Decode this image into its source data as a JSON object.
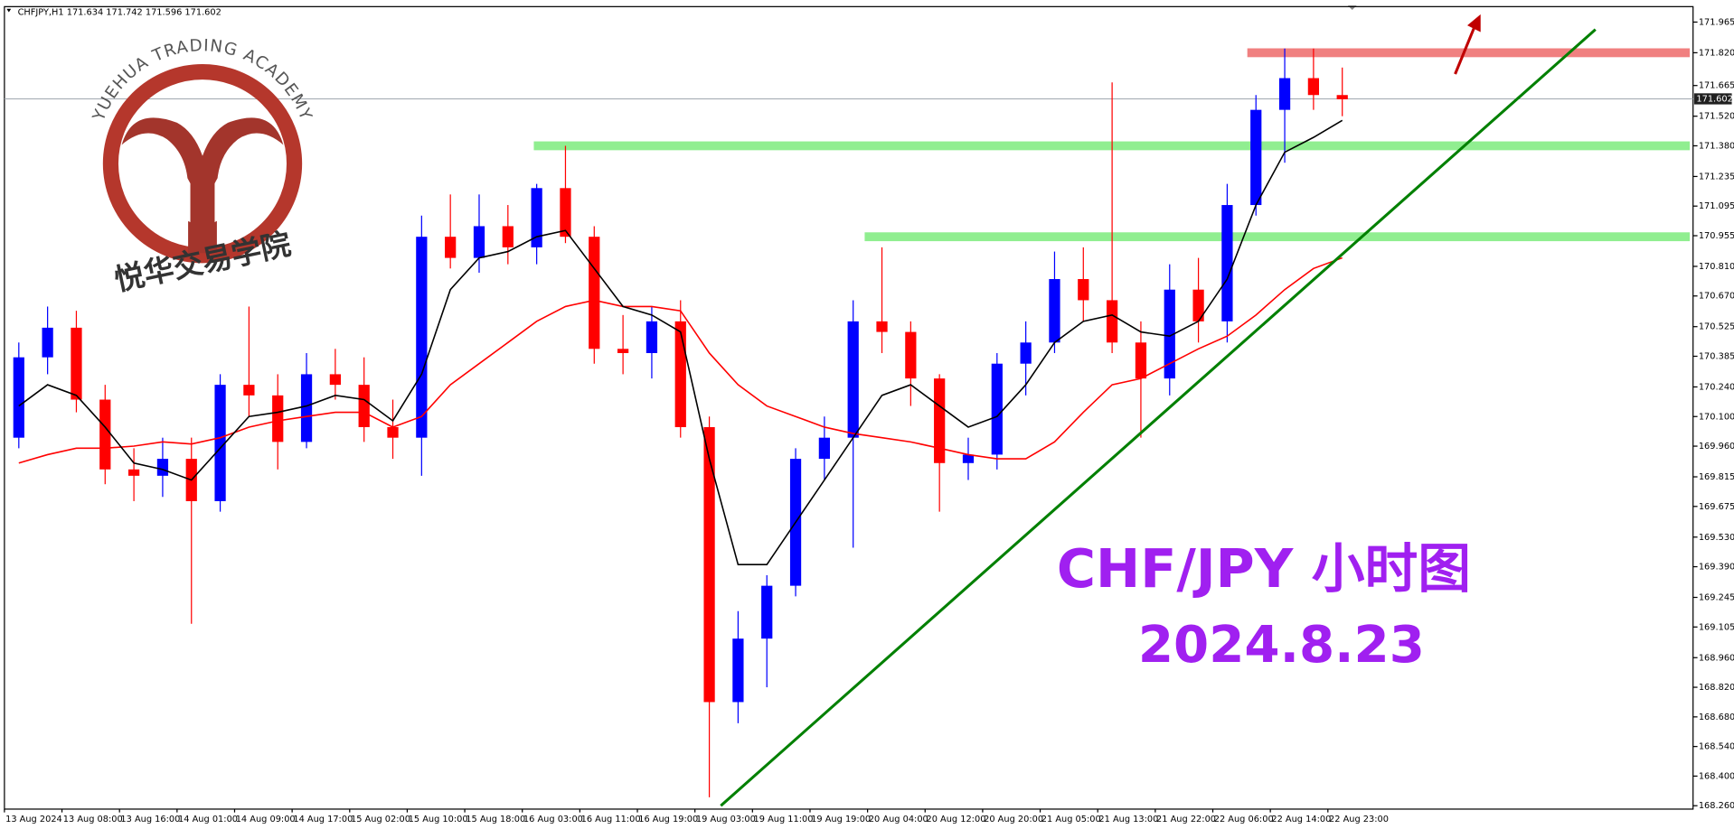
{
  "chart_data": {
    "type": "candlestick",
    "title": "CHFJPY,H1  171.634 171.742 171.596 171.602",
    "logo_text": "YUEHUA TRADING ACADEMY",
    "logo_cn": "悦华交易学院",
    "annotation": "CHF/JPY  小时图",
    "date_text": "2024.8.23",
    "up_color": "#0000ff",
    "down_color": "#ff0000",
    "open": [
      170.0,
      170.38,
      170.52,
      170.18,
      169.85,
      169.82,
      169.9,
      169.7,
      170.25,
      170.2,
      169.98,
      170.3,
      170.25,
      170.05,
      170.0,
      170.95,
      170.85,
      171.0,
      170.9,
      171.18,
      170.95,
      170.42,
      170.4,
      170.55,
      170.05,
      168.75,
      169.05,
      169.3,
      169.9,
      170.0,
      170.55,
      170.5,
      170.28,
      169.88,
      169.92,
      170.35,
      170.45,
      170.75,
      170.65,
      170.45,
      170.28,
      170.7,
      170.55,
      171.1,
      171.55,
      171.7,
      171.62
    ],
    "high": [
      170.45,
      170.62,
      170.6,
      170.25,
      169.95,
      170.0,
      170.0,
      170.3,
      170.62,
      170.3,
      170.4,
      170.42,
      170.38,
      170.18,
      171.05,
      171.15,
      171.15,
      171.1,
      171.2,
      171.38,
      171.0,
      170.58,
      170.62,
      170.65,
      170.1,
      169.18,
      169.35,
      169.95,
      170.1,
      170.65,
      170.9,
      170.55,
      170.3,
      170.0,
      170.4,
      170.55,
      170.88,
      170.9,
      171.68,
      170.55,
      170.82,
      170.85,
      171.2,
      171.62,
      171.84,
      171.84,
      171.75
    ],
    "low": [
      169.95,
      170.3,
      170.12,
      169.78,
      169.7,
      169.72,
      169.12,
      169.65,
      170.1,
      169.85,
      169.95,
      170.18,
      169.98,
      169.9,
      169.82,
      170.8,
      170.78,
      170.82,
      170.82,
      170.92,
      170.35,
      170.3,
      170.28,
      170.0,
      168.3,
      168.65,
      168.82,
      169.25,
      169.8,
      169.48,
      170.4,
      170.15,
      169.65,
      169.8,
      169.85,
      170.2,
      170.4,
      170.55,
      170.4,
      170.0,
      170.2,
      170.45,
      170.45,
      171.05,
      171.3,
      171.55,
      171.52
    ],
    "close": [
      170.38,
      170.52,
      170.18,
      169.85,
      169.82,
      169.9,
      169.7,
      170.25,
      170.2,
      169.98,
      170.3,
      170.25,
      170.05,
      170.0,
      170.95,
      170.85,
      171.0,
      170.9,
      171.18,
      170.95,
      170.42,
      170.4,
      170.55,
      170.05,
      168.75,
      169.05,
      169.3,
      169.9,
      170.0,
      170.55,
      170.5,
      170.28,
      169.88,
      169.92,
      170.35,
      170.45,
      170.75,
      170.65,
      170.45,
      170.28,
      170.7,
      170.55,
      171.1,
      171.55,
      171.7,
      171.62,
      171.6
    ],
    "ma_fast": {
      "color": "#000000",
      "values": [
        170.15,
        170.25,
        170.2,
        170.05,
        169.88,
        169.85,
        169.8,
        169.95,
        170.1,
        170.12,
        170.15,
        170.2,
        170.18,
        170.08,
        170.3,
        170.7,
        170.85,
        170.88,
        170.95,
        170.98,
        170.8,
        170.62,
        170.58,
        170.5,
        169.9,
        169.4,
        169.4,
        169.6,
        169.8,
        170.0,
        170.2,
        170.25,
        170.15,
        170.05,
        170.1,
        170.25,
        170.45,
        170.55,
        170.58,
        170.5,
        170.48,
        170.55,
        170.75,
        171.1,
        171.35,
        171.42,
        171.5
      ]
    },
    "ma_slow": {
      "color": "#ff0000",
      "values": [
        169.88,
        169.92,
        169.95,
        169.95,
        169.96,
        169.98,
        169.97,
        170.0,
        170.05,
        170.08,
        170.1,
        170.12,
        170.12,
        170.05,
        170.1,
        170.25,
        170.35,
        170.45,
        170.55,
        170.62,
        170.65,
        170.62,
        170.62,
        170.6,
        170.4,
        170.25,
        170.15,
        170.1,
        170.05,
        170.02,
        170.0,
        169.98,
        169.95,
        169.92,
        169.9,
        169.9,
        169.98,
        170.12,
        170.25,
        170.28,
        170.35,
        170.42,
        170.48,
        170.58,
        170.7,
        170.8,
        170.85
      ]
    },
    "zones": [
      {
        "price": 171.82,
        "start": 43.2,
        "color": "#f08080"
      },
      {
        "price": 171.38,
        "start": 18.4,
        "color": "#90ee90"
      },
      {
        "price": 170.95,
        "start": 29.9,
        "color": "#90ee90"
      }
    ],
    "trendline": {
      "color": "#008000",
      "x": [
        24.9,
        55.3
      ],
      "y": [
        168.26,
        171.93
      ]
    },
    "current_price": 171.602,
    "ylim": [
      168.244,
      172.038
    ],
    "yticks": [
      171.965,
      {
        "value": 171.82,
        "label": "171.820"
      },
      171.665,
      {
        "value": 171.52,
        "label": "171.520"
      },
      {
        "value": 171.38,
        "label": "171.380"
      },
      171.235,
      171.095,
      170.955,
      {
        "value": 170.81,
        "label": "170.810"
      },
      {
        "value": 170.67,
        "label": "170.670"
      },
      170.525,
      170.385,
      {
        "value": 170.24,
        "label": "170.240"
      },
      {
        "value": 170.1,
        "label": "170.100"
      },
      {
        "value": 169.96,
        "label": "169.960"
      },
      169.815,
      169.675,
      {
        "value": 169.53,
        "label": "169.530"
      },
      {
        "value": 169.39,
        "label": "169.390"
      },
      169.245,
      169.105,
      {
        "value": 168.96,
        "label": "168.960"
      },
      {
        "value": 168.82,
        "label": "168.820"
      },
      {
        "value": 168.68,
        "label": "168.680"
      },
      {
        "value": 168.54,
        "label": "168.540"
      },
      {
        "value": 168.4,
        "label": "168.400"
      },
      {
        "value": 168.26,
        "label": "168.260"
      }
    ],
    "xticks": [
      {
        "value": 0,
        "label": "13 Aug 2024"
      },
      {
        "value": 2,
        "label": "13 Aug 08:00"
      },
      {
        "value": 4,
        "label": "13 Aug 16:00"
      },
      {
        "value": 6,
        "label": "14 Aug 01:00"
      },
      {
        "value": 8,
        "label": "14 Aug 09:00"
      },
      {
        "value": 10,
        "label": "14 Aug 17:00"
      },
      {
        "value": 12,
        "label": "15 Aug 02:00"
      },
      {
        "value": 14,
        "label": "15 Aug 10:00"
      },
      {
        "value": 16,
        "label": "15 Aug 18:00"
      },
      {
        "value": 18,
        "label": "16 Aug 03:00"
      },
      {
        "value": 20,
        "label": "16 Aug 11:00"
      },
      {
        "value": 22,
        "label": "16 Aug 19:00"
      },
      {
        "value": 24,
        "label": "19 Aug 03:00"
      },
      {
        "value": 26,
        "label": "19 Aug 11:00"
      },
      {
        "value": 28,
        "label": "19 Aug 19:00"
      },
      {
        "value": 30,
        "label": "20 Aug 04:00"
      },
      {
        "value": 32,
        "label": "20 Aug 12:00"
      },
      {
        "value": 34,
        "label": "20 Aug 20:00"
      },
      {
        "value": 36,
        "label": "21 Aug 05:00"
      },
      {
        "value": 38,
        "label": "21 Aug 13:00"
      },
      {
        "value": 40,
        "label": "21 Aug 22:00"
      },
      {
        "value": 42,
        "label": "22 Aug 06:00"
      },
      {
        "value": 44,
        "label": "22 Aug 14:00"
      },
      {
        "value": 46,
        "label": "22 Aug 23:00"
      }
    ]
  }
}
